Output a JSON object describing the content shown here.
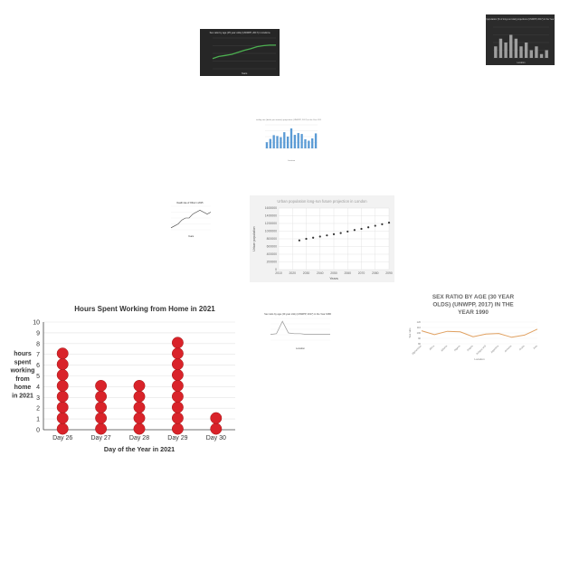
{
  "chart_data": [
    {
      "type": "line",
      "title": "Sex ratio by age (35 year olds) (UNWPP, 2017) in Andorra",
      "xlabel": "Years",
      "ylabel": "",
      "theme": "dark",
      "series": [
        {
          "color": "#4caf50",
          "values": [
            2.0,
            2.4,
            2.6,
            2.8,
            3.2,
            3.6,
            3.9,
            4.3,
            4.5,
            4.6,
            4.6
          ]
        }
      ],
      "ylim": [
        0,
        6
      ]
    },
    {
      "type": "bar",
      "title": "Rural population (% of long-run total) projections (UNWPP, 2017) in the Year 1960",
      "xlabel": "Location",
      "ylabel": "",
      "theme": "dark",
      "series": [
        {
          "color": "#9e9e9e",
          "values": [
            3,
            5,
            4,
            6,
            5,
            3,
            4,
            2,
            3,
            1,
            2
          ]
        }
      ],
      "ylim": [
        0,
        8
      ]
    },
    {
      "type": "bar",
      "title": "Fertility rate (births per woman) projections (UNWPP, 2017) in the Year 2015",
      "xlabel": "Location",
      "ylabel": "",
      "series": [
        {
          "color": "#5b9bd5",
          "values": [
            2.1,
            3.2,
            4.5,
            4.2,
            3.8,
            5.5,
            4.0,
            6.8,
            4.6,
            5.2,
            4.9,
            3.1,
            2.6,
            3.4,
            5.1
          ]
        }
      ],
      "ylim": [
        0,
        8
      ]
    },
    {
      "type": "line",
      "title": "Death rate of Other in 2015",
      "xlabel": "Years",
      "ylabel": "",
      "series": [
        {
          "color": "#444444",
          "values": [
            1,
            2,
            3,
            5,
            6,
            6,
            8,
            9,
            10,
            9,
            8,
            9
          ]
        }
      ],
      "ylim": [
        0,
        12
      ]
    },
    {
      "type": "scatter",
      "title": "Urban population long-run future projection in London",
      "xlabel": "Years",
      "ylabel": "Urban population",
      "x": [
        2025,
        2030,
        2035,
        2040,
        2045,
        2050,
        2055,
        2060,
        2065,
        2070,
        2075,
        2080,
        2085,
        2090,
        2095
      ],
      "series": [
        {
          "color": "#333333",
          "values": [
            7600000,
            8000000,
            8300000,
            8600000,
            8900000,
            9200000,
            9500000,
            9900000,
            10300000,
            10600000,
            11000000,
            11400000,
            11800000,
            12200000,
            12600000
          ]
        }
      ],
      "xticks": [
        "2010",
        "2020",
        "2030",
        "2040",
        "2050",
        "2060",
        "2070",
        "2080",
        "2090"
      ],
      "yticks": [
        "0",
        "200000",
        "400000",
        "600000",
        "800000",
        "1000000",
        "1200000",
        "1400000",
        "1600000"
      ]
    },
    {
      "type": "line",
      "title": "Hours Spent Working from Home in 2021",
      "xlabel": "Day of the Year in 2021",
      "ylabel": "hours spent working from home in 2021",
      "ylabel_lines": [
        "hours",
        "spent",
        "working",
        "from",
        "home",
        "in 2021"
      ],
      "categories": [
        "Day 26",
        "Day 27",
        "Day 28",
        "Day 29",
        "Day 30"
      ],
      "values": [
        8,
        5,
        5,
        9,
        2
      ],
      "yticks": [
        "0",
        "1",
        "2",
        "3",
        "4",
        "5",
        "6",
        "7",
        "8",
        "9",
        "10"
      ],
      "ylim": [
        0,
        10
      ],
      "marker_color": "#d9232a"
    },
    {
      "type": "line",
      "title": "Sex ratio by age (40 year olds) (UNWPP, 2017) in the Year 1986",
      "xlabel": "Location",
      "ylabel": "",
      "series": [
        {
          "color": "#999999",
          "values": [
            0.8,
            0.9,
            2.6,
            1.0,
            0.9,
            0.9,
            0.8,
            0.8,
            0.8,
            0.8,
            0.8
          ]
        }
      ],
      "ylim": [
        0,
        3
      ]
    },
    {
      "type": "line",
      "title": "SEX RATIO BY AGE (30 YEAR OLDS) (UNWPP, 2017) IN THE YEAR 1990",
      "title_lines": [
        "SEX RATIO BY AGE (30 YEAR",
        "OLDS) (UNWPP, 2017) IN THE",
        "YEAR 1990"
      ],
      "xlabel": "Location",
      "ylabel": "Sex ratio",
      "categories": [
        "Afghanistan",
        "Africa",
        "Albania",
        "Algeria",
        "Angola",
        "Antigua and",
        "Argentina",
        "Armenia",
        "Aruba",
        "Asia"
      ],
      "series": [
        {
          "color": "#e0a060",
          "values": [
            104,
            97,
            103,
            102,
            93,
            98,
            99,
            92,
            96,
            107
          ]
        }
      ],
      "yticks": [
        "80",
        "90",
        "100",
        "110",
        "120"
      ],
      "ylim": [
        80,
        120
      ]
    }
  ]
}
